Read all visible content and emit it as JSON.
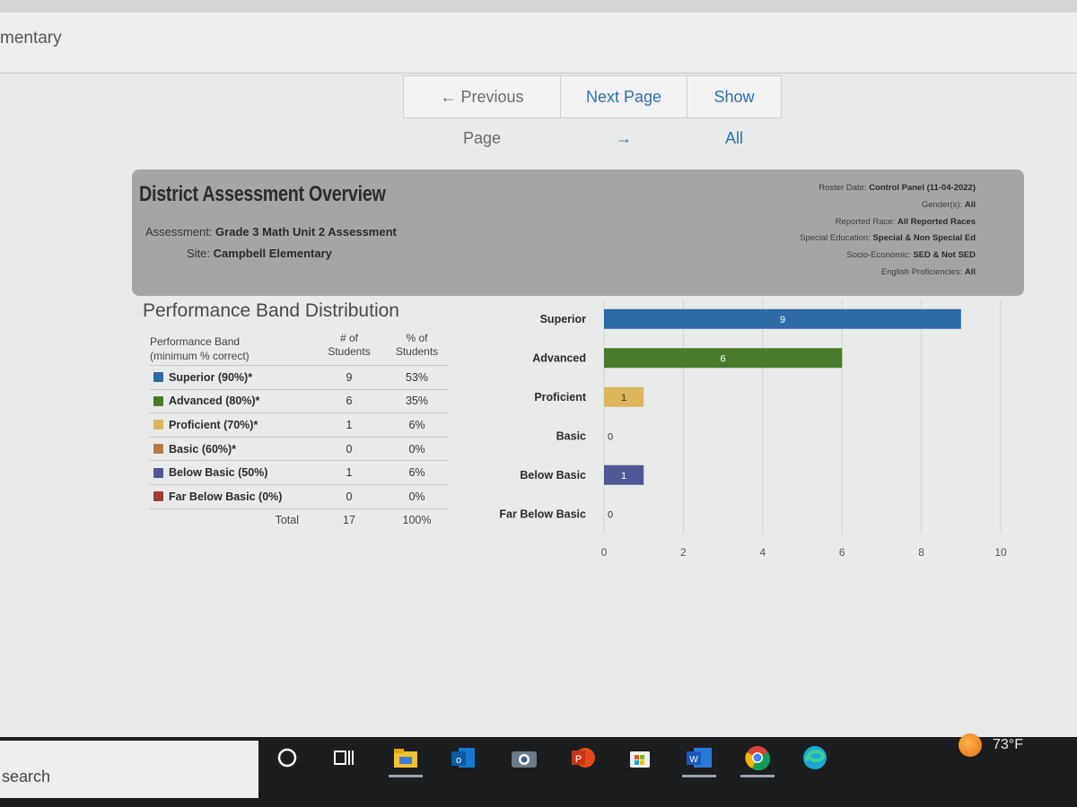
{
  "header": {
    "site_name": "mentary"
  },
  "pager": {
    "prev": "← Previous Page",
    "next": "Next Page →",
    "show_all": "Show All"
  },
  "overview": {
    "title": "District Assessment Overview",
    "assessment_label": "Assessment:",
    "assessment_value": "Grade 3 Math Unit 2 Assessment",
    "site_label": "Site:",
    "site_value": "Campbell Elementary",
    "filters": [
      {
        "label": "Roster Date:",
        "value": "Control Panel (11-04-2022)"
      },
      {
        "label": "Gender(s):",
        "value": "All"
      },
      {
        "label": "Reported Race:",
        "value": "All Reported Races"
      },
      {
        "label": "Special Education:",
        "value": "Special & Non Special Ed"
      },
      {
        "label": "Socio-Economic:",
        "value": "SED & Not SED"
      },
      {
        "label": "English Proficiencies:",
        "value": "All"
      }
    ]
  },
  "section_title": "Performance Band Distribution",
  "table": {
    "head_band": "Performance Band",
    "head_band_sub": "(minimum % correct)",
    "head_count": "# of",
    "head_count_sub": "Students",
    "head_pct": "% of",
    "head_pct_sub": "Students",
    "rows": [
      {
        "band": "Superior (90%)*",
        "count": "9",
        "pct": "53%",
        "color": "#2e6aa6"
      },
      {
        "band": "Advanced (80%)*",
        "count": "6",
        "pct": "35%",
        "color": "#4a7a2a"
      },
      {
        "band": "Proficient (70%)*",
        "count": "1",
        "pct": "6%",
        "color": "#dcb65a"
      },
      {
        "band": "Basic (60%)*",
        "count": "0",
        "pct": "0%",
        "color": "#b87a4a"
      },
      {
        "band": "Below Basic (50%)",
        "count": "1",
        "pct": "6%",
        "color": "#4e5896"
      },
      {
        "band": "Far Below Basic (0%)",
        "count": "0",
        "pct": "0%",
        "color": "#a33a3a"
      }
    ],
    "total_label": "Total",
    "total_count": "17",
    "total_pct": "100%"
  },
  "chart_data": {
    "type": "bar",
    "orientation": "horizontal",
    "categories": [
      "Superior",
      "Advanced",
      "Proficient",
      "Basic",
      "Below Basic",
      "Far Below Basic"
    ],
    "values": [
      9,
      6,
      1,
      0,
      1,
      0
    ],
    "colors": [
      "#2e6aa6",
      "#4a7a2a",
      "#dcb65a",
      "#b87a4a",
      "#4e5896",
      "#a33a3a"
    ],
    "xlim": [
      0,
      10
    ],
    "xticks": [
      0,
      2,
      4,
      6,
      8,
      10
    ],
    "grid": true,
    "title": "",
    "xlabel": "",
    "ylabel": ""
  },
  "taskbar": {
    "search_text": "search",
    "weather_temp": "73°F",
    "icons": [
      "cortana-icon",
      "task-view-icon",
      "file-explorer-icon",
      "outlook-icon",
      "camera-icon",
      "powerpoint-icon",
      "store-icon",
      "word-icon",
      "chrome-icon",
      "edge-icon"
    ]
  }
}
